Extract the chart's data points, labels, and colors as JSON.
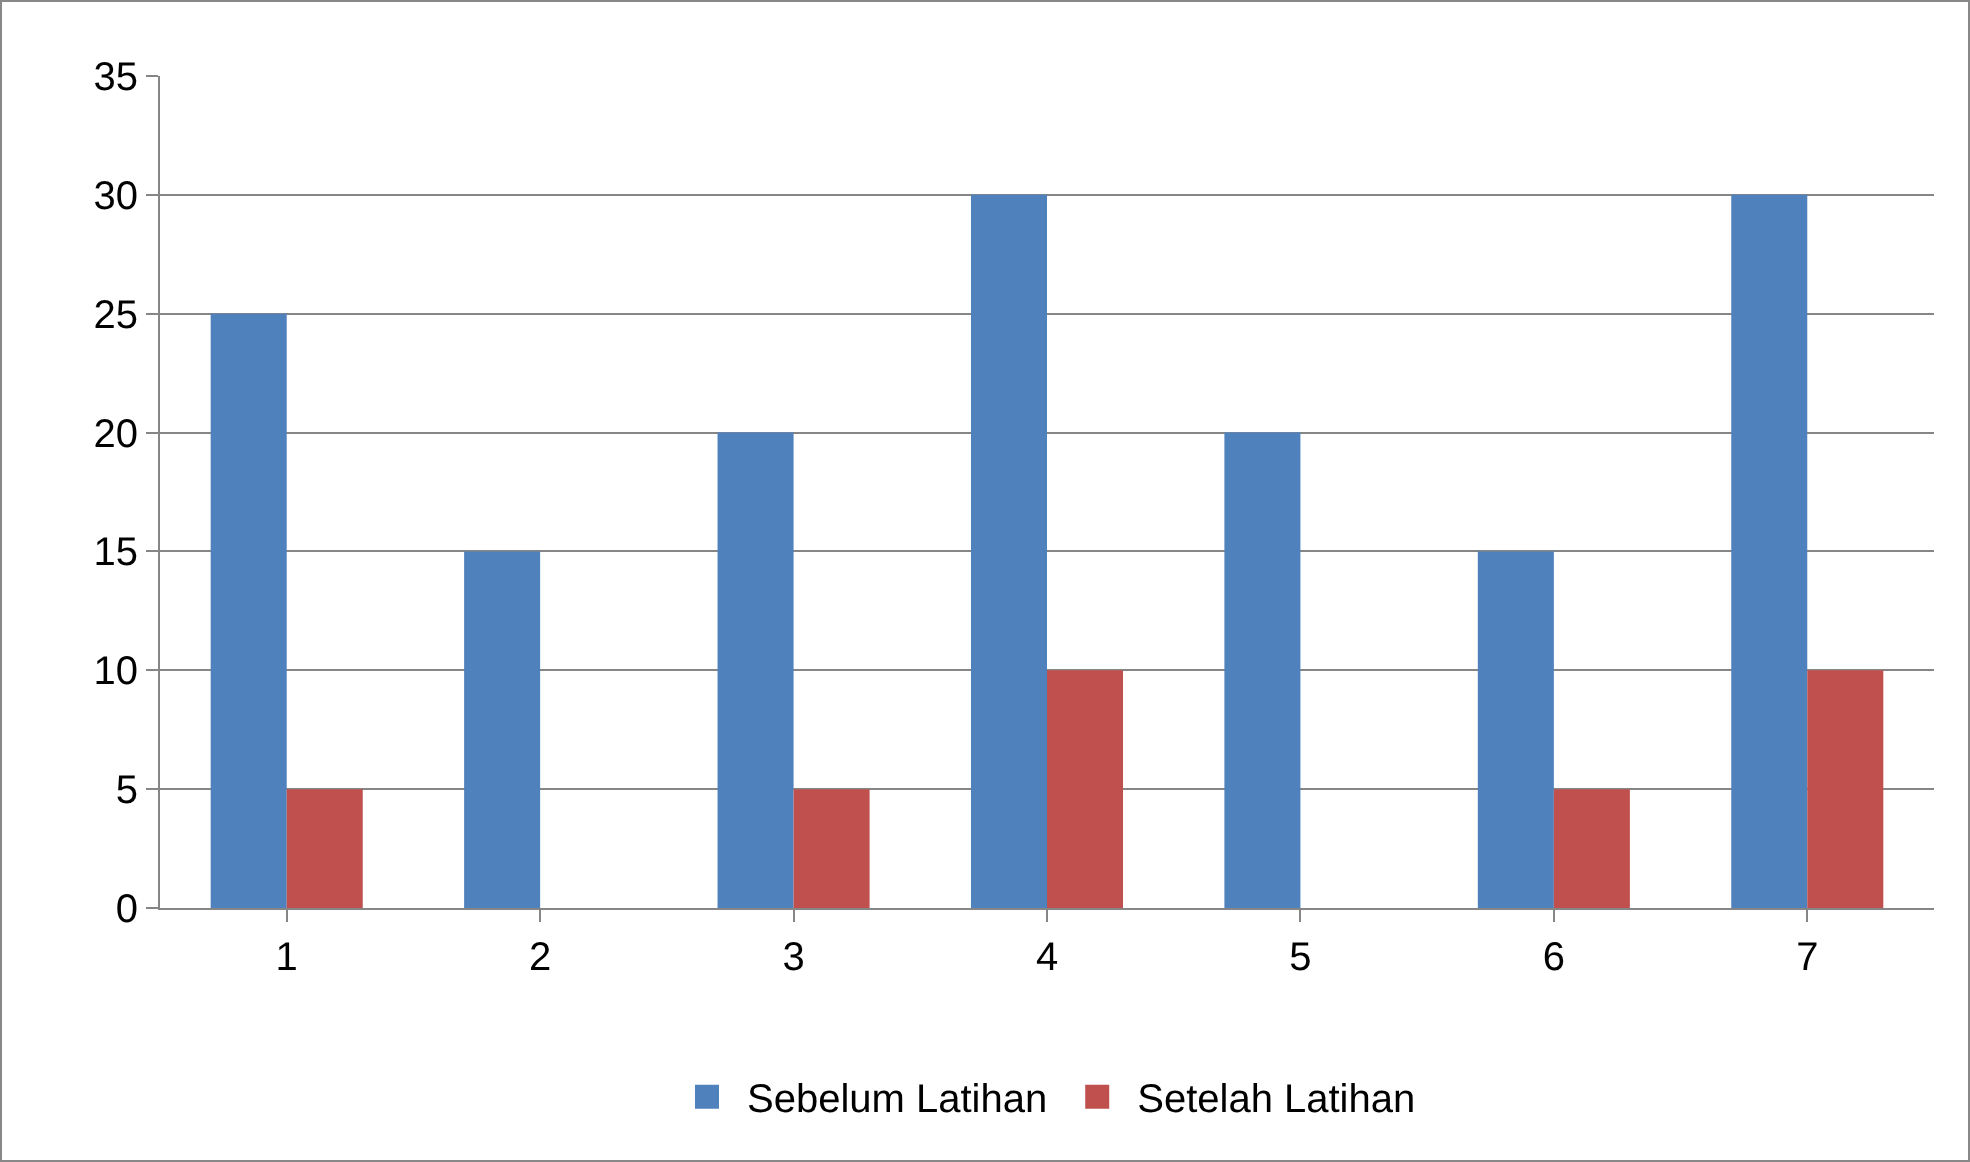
{
  "chart_data": {
    "type": "bar",
    "categories": [
      "1",
      "2",
      "3",
      "4",
      "5",
      "6",
      "7"
    ],
    "series": [
      {
        "name": "Sebelum Latihan",
        "color": "#4f81bd",
        "values": [
          25,
          15,
          20,
          30,
          20,
          15,
          30
        ]
      },
      {
        "name": "Setelah Latihan",
        "color": "#c0504d",
        "values": [
          5,
          0,
          5,
          10,
          0,
          5,
          10
        ]
      }
    ],
    "ylim": [
      0,
      35
    ],
    "yticks": [
      0,
      5,
      10,
      15,
      20,
      25,
      30,
      35
    ],
    "grid": "y",
    "legend": "bottom"
  }
}
